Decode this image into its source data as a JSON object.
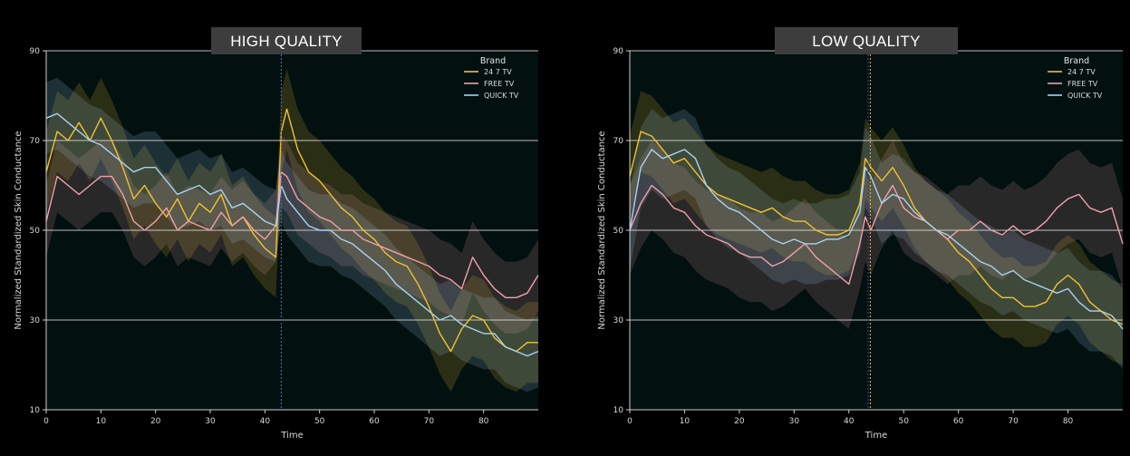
{
  "chart_data": [
    {
      "type": "line",
      "title": "HIGH QUALITY",
      "xlabel": "Time",
      "ylabel": "Normalized Standardized Skin Conductance",
      "xlim": [
        0,
        90
      ],
      "ylim": [
        10,
        90
      ],
      "xticks": [
        0,
        10,
        20,
        30,
        40,
        50,
        60,
        70,
        80
      ],
      "yticks": [
        10,
        30,
        50,
        70,
        90
      ],
      "grid": "horizontal",
      "legend_title": "Brand",
      "legend_position": "top-right",
      "vline_x": 43,
      "x": [
        0,
        2,
        4,
        6,
        8,
        10,
        12,
        14,
        16,
        18,
        20,
        22,
        24,
        26,
        28,
        30,
        32,
        34,
        36,
        38,
        40,
        42,
        43,
        44,
        46,
        48,
        50,
        52,
        54,
        56,
        58,
        60,
        62,
        64,
        66,
        68,
        70,
        72,
        74,
        76,
        78,
        80,
        82,
        84,
        86,
        88,
        90
      ],
      "series": [
        {
          "name": "24 7 TV",
          "color": "#f2c12e",
          "values": [
            63,
            72,
            70,
            74,
            70,
            75,
            70,
            64,
            57,
            60,
            56,
            53,
            57,
            52,
            56,
            54,
            58,
            51,
            53,
            49,
            46,
            44,
            72,
            77,
            68,
            63,
            61,
            58,
            55,
            53,
            50,
            48,
            45,
            43,
            42,
            38,
            33,
            27,
            23,
            28,
            31,
            30,
            26,
            24,
            23,
            25,
            25
          ],
          "band": 9
        },
        {
          "name": "FREE TV",
          "color": "#f0a0a8",
          "values": [
            52,
            62,
            60,
            58,
            60,
            62,
            62,
            58,
            52,
            50,
            52,
            55,
            50,
            52,
            51,
            50,
            54,
            51,
            53,
            50,
            48,
            51,
            63,
            62,
            57,
            55,
            53,
            52,
            50,
            50,
            48,
            47,
            46,
            45,
            44,
            43,
            42,
            40,
            39,
            37,
            44,
            40,
            37,
            35,
            35,
            36,
            40
          ],
          "band": 8
        },
        {
          "name": "QUICK TV",
          "color": "#a9d2f3",
          "values": [
            75,
            76,
            74,
            72,
            70,
            69,
            67,
            65,
            63,
            64,
            64,
            61,
            58,
            59,
            60,
            58,
            59,
            55,
            56,
            54,
            52,
            51,
            60,
            57,
            54,
            51,
            50,
            50,
            48,
            47,
            45,
            43,
            41,
            38,
            36,
            34,
            32,
            30,
            31,
            29,
            28,
            27,
            27,
            24,
            23,
            22,
            23
          ],
          "band": 8
        }
      ]
    },
    {
      "type": "line",
      "title": "LOW QUALITY",
      "xlabel": "Time",
      "ylabel": "Normalized Standardized Skin Conductance",
      "xlim": [
        0,
        90
      ],
      "ylim": [
        10,
        90
      ],
      "xticks": [
        0,
        10,
        20,
        30,
        40,
        50,
        60,
        70,
        80
      ],
      "yticks": [
        10,
        30,
        50,
        70,
        90
      ],
      "grid": "horizontal",
      "legend_title": "Brand",
      "legend_position": "top-right",
      "vline_x": 43.5,
      "x": [
        0,
        2,
        4,
        6,
        8,
        10,
        12,
        14,
        16,
        18,
        20,
        22,
        24,
        26,
        28,
        30,
        32,
        34,
        36,
        38,
        40,
        42,
        43,
        44,
        46,
        48,
        50,
        52,
        54,
        56,
        58,
        60,
        62,
        64,
        66,
        68,
        70,
        72,
        74,
        76,
        78,
        80,
        82,
        84,
        86,
        88,
        90
      ],
      "series": [
        {
          "name": "24 7 TV",
          "color": "#f2c12e",
          "values": [
            62,
            72,
            71,
            68,
            65,
            66,
            63,
            60,
            58,
            57,
            56,
            55,
            54,
            55,
            53,
            52,
            52,
            50,
            49,
            49,
            50,
            56,
            66,
            64,
            61,
            64,
            60,
            55,
            52,
            50,
            48,
            45,
            43,
            40,
            37,
            35,
            35,
            33,
            33,
            34,
            38,
            40,
            38,
            34,
            32,
            30,
            29
          ],
          "band": 9
        },
        {
          "name": "FREE TV",
          "color": "#f0a0a8",
          "values": [
            50,
            56,
            60,
            58,
            55,
            54,
            51,
            49,
            48,
            47,
            45,
            44,
            44,
            42,
            43,
            45,
            47,
            44,
            42,
            40,
            38,
            47,
            53,
            50,
            56,
            60,
            55,
            53,
            52,
            50,
            48,
            50,
            50,
            52,
            50,
            49,
            51,
            49,
            50,
            52,
            55,
            57,
            58,
            55,
            54,
            55,
            47
          ],
          "band": 10
        },
        {
          "name": "QUICK TV",
          "color": "#a9d2f3",
          "values": [
            50,
            64,
            68,
            66,
            67,
            68,
            66,
            60,
            57,
            55,
            54,
            52,
            50,
            48,
            47,
            48,
            47,
            47,
            48,
            48,
            49,
            54,
            64,
            62,
            56,
            58,
            57,
            54,
            52,
            50,
            49,
            47,
            45,
            43,
            42,
            40,
            41,
            39,
            38,
            37,
            36,
            37,
            34,
            32,
            32,
            31,
            28
          ],
          "band": 9
        }
      ]
    }
  ]
}
